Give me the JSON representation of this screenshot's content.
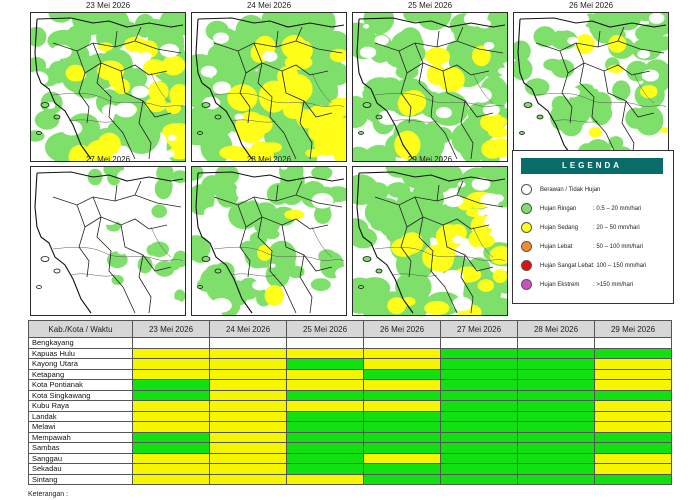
{
  "maps": [
    {
      "date": "23 Mei 2026",
      "rain": "mixed"
    },
    {
      "date": "24 Mei 2026",
      "rain": "heavy"
    },
    {
      "date": "25 Mei 2026",
      "rain": "mixed"
    },
    {
      "date": "26 Mei 2026",
      "rain": "light"
    },
    {
      "date": "27 Mei 2026",
      "rain": "dry"
    },
    {
      "date": "28 Mei 2026",
      "rain": "light"
    },
    {
      "date": "29 Mei 2026",
      "rain": "mixed"
    }
  ],
  "legend": {
    "title": "LEGENDA",
    "items": [
      {
        "label": "Berawan / Tidak Hujan",
        "range": "",
        "color": "#ffffff"
      },
      {
        "label": "Hujan Ringan",
        "range": ": 0.5 – 20 mm/hari",
        "color": "#7ee06a"
      },
      {
        "label": "Hujan Sedang",
        "range": ": 20 – 50 mm/hari",
        "color": "#ffff1a"
      },
      {
        "label": "Hujan Lebat",
        "range": ": 50 – 100 mm/hari",
        "color": "#f28c28"
      },
      {
        "label": "Hujan Sangat Lebat",
        "range": ": 100 – 150 mm/hari",
        "color": "#e01010"
      },
      {
        "label": "Hujan Ekstrem",
        "range": ": >150 mm/hari",
        "color": "#d14fc4"
      }
    ]
  },
  "colors": {
    "G": "#11e011",
    "Y": "#f6f600",
    "W": "#ffffff"
  },
  "table": {
    "header": "Kab./Kota / Waktu",
    "dates": [
      "23 Mei 2026",
      "24 Mei 2026",
      "25 Mei 2026",
      "26 Mei 2026",
      "27 Mei 2026",
      "28 Mei 2026",
      "29 Mei 2026"
    ],
    "rows": [
      {
        "name": "Bengkayang",
        "cells": [
          "W",
          "W",
          "W",
          "W",
          "W",
          "W",
          "W"
        ]
      },
      {
        "name": "Kapuas Hulu",
        "cells": [
          "Y",
          "Y",
          "Y",
          "Y",
          "G",
          "G",
          "G"
        ]
      },
      {
        "name": "Kayong Utara",
        "cells": [
          "Y",
          "Y",
          "G",
          "Y",
          "G",
          "G",
          "Y"
        ]
      },
      {
        "name": "Ketapang",
        "cells": [
          "Y",
          "Y",
          "Y",
          "G",
          "G",
          "G",
          "Y"
        ]
      },
      {
        "name": "Kota Pontianak",
        "cells": [
          "G",
          "Y",
          "Y",
          "Y",
          "G",
          "G",
          "Y"
        ]
      },
      {
        "name": "Kota Singkawang",
        "cells": [
          "G",
          "Y",
          "G",
          "G",
          "G",
          "G",
          "G"
        ]
      },
      {
        "name": "Kubu Raya",
        "cells": [
          "Y",
          "Y",
          "Y",
          "Y",
          "G",
          "G",
          "Y"
        ]
      },
      {
        "name": "Landak",
        "cells": [
          "Y",
          "Y",
          "G",
          "G",
          "G",
          "G",
          "Y"
        ]
      },
      {
        "name": "Melawi",
        "cells": [
          "Y",
          "Y",
          "G",
          "G",
          "G",
          "G",
          "Y"
        ]
      },
      {
        "name": "Mempawah",
        "cells": [
          "G",
          "Y",
          "G",
          "G",
          "G",
          "G",
          "G"
        ]
      },
      {
        "name": "Sambas",
        "cells": [
          "G",
          "Y",
          "G",
          "G",
          "G",
          "G",
          "G"
        ]
      },
      {
        "name": "Sanggau",
        "cells": [
          "Y",
          "Y",
          "G",
          "Y",
          "G",
          "G",
          "Y"
        ]
      },
      {
        "name": "Sekadau",
        "cells": [
          "Y",
          "Y",
          "G",
          "G",
          "G",
          "G",
          "Y"
        ]
      },
      {
        "name": "Sintang",
        "cells": [
          "Y",
          "Y",
          "Y",
          "G",
          "G",
          "G",
          "G"
        ]
      }
    ]
  },
  "footer_note": "Keterangan :"
}
